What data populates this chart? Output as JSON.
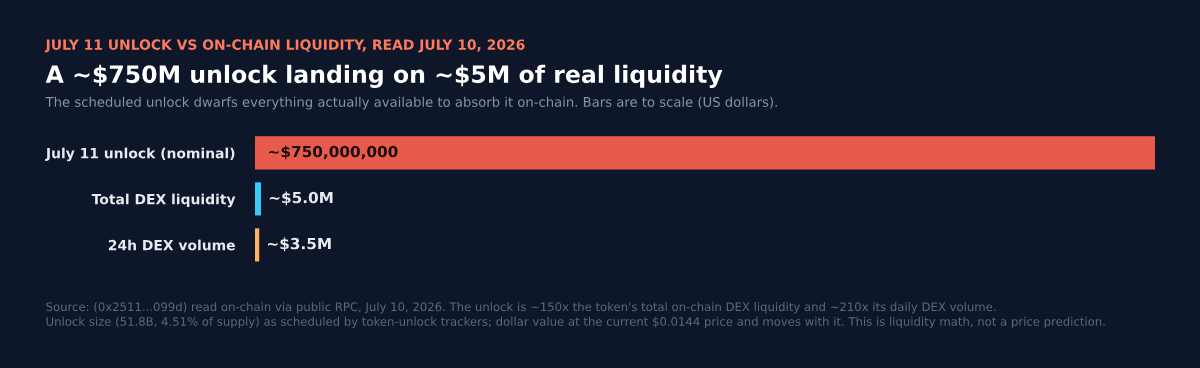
{
  "chart_data": {
    "type": "bar",
    "orientation": "horizontal",
    "subtitle": "JULY 11 UNLOCK VS ON-CHAIN LIQUIDITY, READ JULY 10, 2026",
    "title": "A ~$750M unlock landing on ~$5M of real liquidity",
    "annotations": [
      "The scheduled unlock dwarfs everything actually available to absorb it on-chain. Bars are to scale (US dollars).",
      "Source: (0x2511...099d) read on-chain via public RPC, July 10, 2026. The unlock is ~150x the token's total on-chain DEX liquidity and ~210x its daily DEX volume.",
      "Unlock size (51.8B, 4.51% of supply) as scheduled by token-unlock trackers; dollar value at the current $0.0144 price and moves with it. This is liquidity math, not a price prediction."
    ],
    "categories": [
      "July 11 unlock (nominal)",
      "Total DEX liquidity",
      "24h DEX volume"
    ],
    "values": [
      750000000,
      5000000,
      3500000
    ],
    "colors": [
      "#e85a4a",
      "#38c8fa",
      "#ffb35c"
    ],
    "value_labels": [
      "~$750,000,000",
      "~$5.0M",
      "~$3.5M"
    ]
  }
}
